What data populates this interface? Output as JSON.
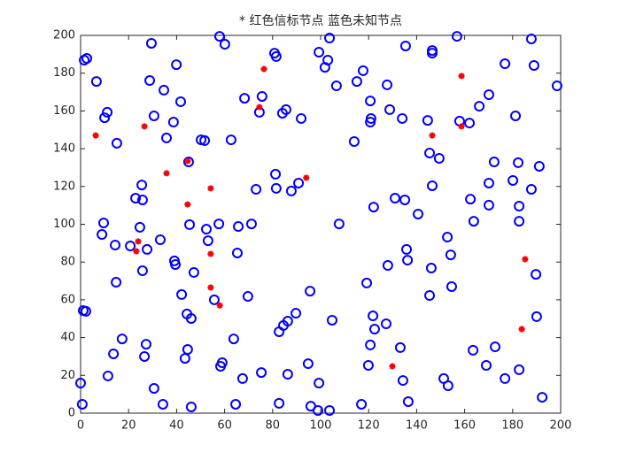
{
  "chart_data": {
    "type": "scatter",
    "title": "* 红色信标节点 蓝色未知节点",
    "xlim": [
      0,
      200
    ],
    "ylim": [
      0,
      200
    ],
    "xticks": [
      0,
      20,
      40,
      60,
      80,
      100,
      120,
      140,
      160,
      180,
      200
    ],
    "yticks": [
      0,
      20,
      40,
      60,
      80,
      100,
      120,
      140,
      160,
      180,
      200
    ],
    "grid": false,
    "series": [
      {
        "color": "#0000ff",
        "marker": "circle",
        "x": [
          1.5,
          2.6,
          29.5,
          57.9,
          60.1,
          80.8,
          81.5,
          103.7,
          99.3,
          103.0,
          101.8,
          106.6,
          117.7,
          115.1,
          120.7,
          120.7,
          121.0,
          146.5,
          146.5,
          156.8,
          135.4,
          187.8,
          176.8,
          188.9,
          198.5,
          170.1,
          166.1,
          157.9,
          162.0,
          181.2,
          144.6,
          149.4,
          145.4,
          146.5,
          134.0,
          128.8,
          127.7,
          39.9,
          28.8,
          34.7,
          41.7,
          38.7,
          35.8,
          30.6,
          10.0,
          6.6,
          11.1,
          15.1,
          50.2,
          51.7,
          62.7,
          68.3,
          74.5,
          75.6,
          91.9,
          85.6,
          84.1,
          114.0,
          45.0,
          25.5,
          22.9,
          25.8,
          73.1,
          81.2,
          81.5,
          87.8,
          90.8,
          107.7,
          122.1,
          131.0,
          135.1,
          140.6,
          152.8,
          154.2,
          162.4,
          163.8,
          170.1,
          172.3,
          170.1,
          180.1,
          182.3,
          182.7,
          182.7,
          187.8,
          191.1,
          9.6,
          8.9,
          14.4,
          20.7,
          27.7,
          24.7,
          33.2,
          39.1,
          39.5,
          45.4,
          52.4,
          53.1,
          57.6,
          65.7,
          71.2,
          65.3,
          47.2,
          42.1,
          44.3,
          46.1,
          14.8,
          55.7,
          69.7,
          95.6,
          89.7,
          86.3,
          84.5,
          82.7,
          104.8,
          119.2,
          128.0,
          135.8,
          136.2,
          146.1,
          154.6,
          145.4,
          121.8,
          122.5,
          127.3,
          120.7,
          119.9,
          133.2,
          163.5,
          172.7,
          169.0,
          176.8,
          182.7,
          190.0,
          189.7,
          192.3,
          151.3,
          153.1,
          134.3,
          136.5,
          94.8,
          99.3,
          98.9,
          103.7,
          95.9,
          86.3,
          75.3,
          67.5,
          63.8,
          59.0,
          58.3,
          46.1,
          43.5,
          44.6,
          27.3,
          26.6,
          17.3,
          13.7,
          11.4,
          30.6,
          34.3,
          0.0,
          0.7,
          64.6,
          82.7,
          117.0,
          1.1,
          2.2,
          25.8
        ],
        "values": [
          186.9,
          187.8,
          195.8,
          199.5,
          195.3,
          190.6,
          188.8,
          198.6,
          191.1,
          186.9,
          183.1,
          173.3,
          181.3,
          175.6,
          165.3,
          154.1,
          156.0,
          192.0,
          190.6,
          199.5,
          194.4,
          198.1,
          185.0,
          184.1,
          173.3,
          168.6,
          162.5,
          154.6,
          153.6,
          157.4,
          155.0,
          134.9,
          137.7,
          120.4,
          156.0,
          160.7,
          173.8,
          184.5,
          176.1,
          171.0,
          164.9,
          154.1,
          145.7,
          157.4,
          156.4,
          175.6,
          159.3,
          142.9,
          144.7,
          144.3,
          144.7,
          166.7,
          159.3,
          167.7,
          156.0,
          160.7,
          158.8,
          143.8,
          133.0,
          120.8,
          113.8,
          112.9,
          118.5,
          126.5,
          119.0,
          117.6,
          121.8,
          100.2,
          109.1,
          113.8,
          112.9,
          105.4,
          93.2,
          83.8,
          113.3,
          101.6,
          110.1,
          133.0,
          121.8,
          123.2,
          132.6,
          109.6,
          101.6,
          118.5,
          130.7,
          100.7,
          94.6,
          89.0,
          88.5,
          86.7,
          98.4,
          91.8,
          80.6,
          78.7,
          99.8,
          97.4,
          91.3,
          100.2,
          98.8,
          100.2,
          84.8,
          74.5,
          62.8,
          52.5,
          50.1,
          69.3,
          60.0,
          61.8,
          64.6,
          52.9,
          48.7,
          46.4,
          43.1,
          49.2,
          68.9,
          78.2,
          86.7,
          81.0,
          76.8,
          67.0,
          62.3,
          51.5,
          44.5,
          47.3,
          36.1,
          25.3,
          34.7,
          33.3,
          35.1,
          25.3,
          18.3,
          23.0,
          51.1,
          73.5,
          8.4,
          18.3,
          14.5,
          17.3,
          6.1,
          26.2,
          15.9,
          1.4,
          1.4,
          3.7,
          20.6,
          21.5,
          18.3,
          39.3,
          26.7,
          24.8,
          3.3,
          29.0,
          33.7,
          36.5,
          30.0,
          39.3,
          31.4,
          19.7,
          13.1,
          4.7,
          15.9,
          4.7,
          4.7,
          5.2,
          4.7,
          54.3,
          53.9,
          75.4
        ]
      },
      {
        "color": "#ff0000",
        "marker": "star",
        "x": [
          6.3,
          26.6,
          76.4,
          74.5,
          35.8,
          44.6,
          54.2,
          94.0,
          44.6,
          24.0,
          23.2,
          54.2,
          54.2,
          58.0,
          146.5,
          158.7,
          158.7,
          185.2,
          183.8,
          129.9
        ],
        "values": [
          147.0,
          151.8,
          182.2,
          162.0,
          127.0,
          133.5,
          119.0,
          124.6,
          110.5,
          90.9,
          85.7,
          84.3,
          66.5,
          57.0,
          147.0,
          178.5,
          151.8,
          81.5,
          44.5,
          24.8
        ]
      }
    ]
  }
}
